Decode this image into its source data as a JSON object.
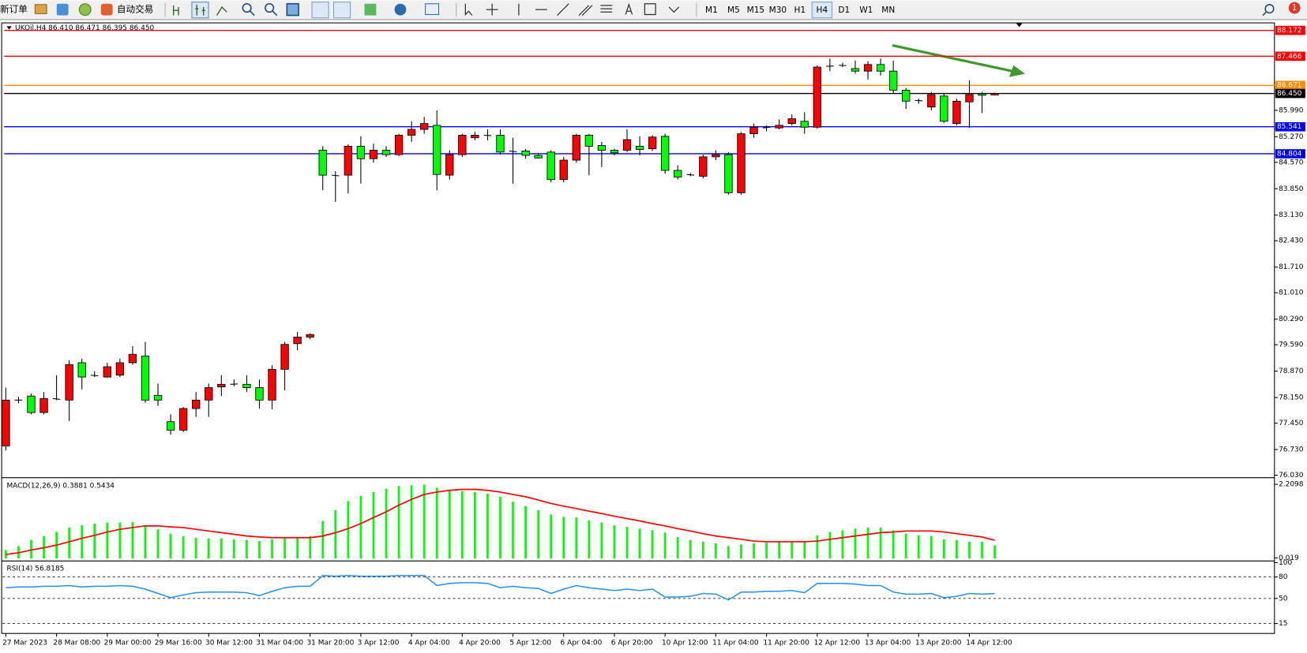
{
  "toolbar": {
    "new_order": "新订单",
    "auto_trading": "自动交易",
    "timeframes": [
      "M1",
      "M5",
      "M15",
      "M30",
      "H1",
      "H4",
      "D1",
      "W1",
      "MN"
    ],
    "active_timeframe_index": 5,
    "badge": "1"
  },
  "chart_data": [
    {
      "type": "candlestick",
      "title": "UKOil,H4  86.410 86.471 86.395 86.450",
      "up_color": "#ff0000",
      "down_color": "#00ff00",
      "categories": [
        "27 Mar 2023",
        null,
        null,
        null,
        "28 Mar 08:00",
        null,
        null,
        null,
        "29 Mar 00:00",
        null,
        null,
        null,
        "29 Mar 16:00",
        null,
        null,
        null,
        "30 Mar 12:00",
        null,
        null,
        null,
        "31 Mar 04:00",
        null,
        null,
        null,
        "31 Mar 20:00",
        null,
        null,
        null,
        "3 Apr 12:00",
        null,
        null,
        null,
        "4 Apr 04:00",
        null,
        null,
        null,
        "4 Apr 20:00",
        null,
        null,
        null,
        "5 Apr 12:00",
        null,
        null,
        null,
        "6 Apr 04:00",
        null,
        null,
        null,
        "6 Apr 20:00",
        null,
        null,
        null,
        "10 Apr 12:00",
        null,
        null,
        null,
        "11 Apr 04:00",
        null,
        null,
        null,
        "11 Apr 20:00",
        null,
        null,
        null,
        "12 Apr 12:00",
        null,
        null,
        null,
        "13 Apr 04:00",
        null,
        null,
        null,
        "13 Apr 20:00",
        null,
        null,
        null,
        "14 Apr 12:00",
        null,
        null
      ],
      "ohlc": [
        [
          76.83,
          78.42,
          76.71,
          78.08
        ],
        [
          78.08,
          78.17,
          77.99,
          78.08
        ],
        [
          78.19,
          78.26,
          77.69,
          77.74
        ],
        [
          77.74,
          78.3,
          77.69,
          78.12
        ],
        [
          78.12,
          78.76,
          78.08,
          78.1
        ],
        [
          78.08,
          79.17,
          77.51,
          79.05
        ],
        [
          79.1,
          79.21,
          78.37,
          78.71
        ],
        [
          78.76,
          78.87,
          78.71,
          78.74
        ],
        [
          78.71,
          79.1,
          78.69,
          78.99
        ],
        [
          78.76,
          79.21,
          78.71,
          79.1
        ],
        [
          79.1,
          79.55,
          79.05,
          79.33
        ],
        [
          79.28,
          79.67,
          78.01,
          78.08
        ],
        [
          78.21,
          78.53,
          77.92,
          78.08
        ],
        [
          77.49,
          77.69,
          77.14,
          77.26
        ],
        [
          77.26,
          77.89,
          77.21,
          77.85
        ],
        [
          77.85,
          78.3,
          77.62,
          78.08
        ],
        [
          78.08,
          78.53,
          77.62,
          78.42
        ],
        [
          78.44,
          78.76,
          78.19,
          78.51
        ],
        [
          78.51,
          78.64,
          78.46,
          78.52
        ],
        [
          78.51,
          78.76,
          78.3,
          78.42
        ],
        [
          78.42,
          78.64,
          77.85,
          78.08
        ],
        [
          78.08,
          79.03,
          77.83,
          78.92
        ],
        [
          78.92,
          79.67,
          78.35,
          79.6
        ],
        [
          79.62,
          79.94,
          79.44,
          79.8
        ],
        [
          79.8,
          79.9,
          79.74,
          79.87
        ],
        [
          84.9,
          85.01,
          83.81,
          84.22
        ],
        [
          84.22,
          84.33,
          83.49,
          84.2
        ],
        [
          84.22,
          85.06,
          83.72,
          85.01
        ],
        [
          85.01,
          85.28,
          83.99,
          84.67
        ],
        [
          84.67,
          85.08,
          84.56,
          84.9
        ],
        [
          84.9,
          85.01,
          84.72,
          84.78
        ],
        [
          84.78,
          85.35,
          84.74,
          85.31
        ],
        [
          85.31,
          85.69,
          85.13,
          85.47
        ],
        [
          85.47,
          85.81,
          85.35,
          85.63
        ],
        [
          85.58,
          85.99,
          83.81,
          84.24
        ],
        [
          84.22,
          84.9,
          84.1,
          84.78
        ],
        [
          84.78,
          85.35,
          84.72,
          85.31
        ],
        [
          85.24,
          85.4,
          85.17,
          85.31
        ],
        [
          85.31,
          85.47,
          85.17,
          85.3
        ],
        [
          85.31,
          85.47,
          84.78,
          84.85
        ],
        [
          84.88,
          85.24,
          83.99,
          84.86
        ],
        [
          84.88,
          84.94,
          84.67,
          84.76
        ],
        [
          84.76,
          84.83,
          84.67,
          84.69
        ],
        [
          84.85,
          84.9,
          84.03,
          84.1
        ],
        [
          84.1,
          84.72,
          84.03,
          84.63
        ],
        [
          84.63,
          85.35,
          84.56,
          85.31
        ],
        [
          85.31,
          85.35,
          84.22,
          85.01
        ],
        [
          85.03,
          85.13,
          84.44,
          84.9
        ],
        [
          84.9,
          84.94,
          84.76,
          84.83
        ],
        [
          84.9,
          85.47,
          84.85,
          85.19
        ],
        [
          85.01,
          85.28,
          84.76,
          84.92
        ],
        [
          84.94,
          85.31,
          84.88,
          85.26
        ],
        [
          85.28,
          85.35,
          84.26,
          84.35
        ],
        [
          84.35,
          84.49,
          84.1,
          84.17
        ],
        [
          84.24,
          84.28,
          84.19,
          84.22
        ],
        [
          84.19,
          84.78,
          84.13,
          84.72
        ],
        [
          84.72,
          84.9,
          84.63,
          84.78
        ],
        [
          84.78,
          84.85,
          83.69,
          83.74
        ],
        [
          83.74,
          85.4,
          83.69,
          85.35
        ],
        [
          85.35,
          85.63,
          85.24,
          85.53
        ],
        [
          85.51,
          85.58,
          85.42,
          85.53
        ],
        [
          85.51,
          85.74,
          85.47,
          85.58
        ],
        [
          85.63,
          85.88,
          85.58,
          85.76
        ],
        [
          85.69,
          85.94,
          85.35,
          85.53
        ],
        [
          85.53,
          87.22,
          85.49,
          87.17
        ],
        [
          87.19,
          87.4,
          87.06,
          87.2
        ],
        [
          87.22,
          87.29,
          87.17,
          87.21
        ],
        [
          87.13,
          87.35,
          86.99,
          87.06
        ],
        [
          87.06,
          87.33,
          86.83,
          87.24
        ],
        [
          87.24,
          87.4,
          86.94,
          87.06
        ],
        [
          87.06,
          87.35,
          86.44,
          86.54
        ],
        [
          86.54,
          86.6,
          86.03,
          86.24
        ],
        [
          86.26,
          86.31,
          86.17,
          86.25
        ],
        [
          86.08,
          86.49,
          85.99,
          86.42
        ],
        [
          86.38,
          86.44,
          85.65,
          85.69
        ],
        [
          85.63,
          86.31,
          85.58,
          86.24
        ],
        [
          86.22,
          86.81,
          85.51,
          86.42
        ],
        [
          86.44,
          86.49,
          85.92,
          86.4
        ],
        [
          86.41,
          86.471,
          86.395,
          86.45
        ]
      ],
      "ylim": [
        76.03,
        88.172
      ],
      "yticks": [
        {
          "value": 85.99,
          "label": "85.990"
        },
        {
          "value": 85.27,
          "label": "85.270"
        },
        {
          "value": 84.57,
          "label": "84.570"
        },
        {
          "value": 83.85,
          "label": "83.850"
        },
        {
          "value": 83.13,
          "label": "83.130"
        },
        {
          "value": 82.43,
          "label": "82.430"
        },
        {
          "value": 81.71,
          "label": "81.710"
        },
        {
          "value": 81.01,
          "label": "81.010"
        },
        {
          "value": 80.29,
          "label": "80.290"
        },
        {
          "value": 79.59,
          "label": "79.590"
        },
        {
          "value": 78.87,
          "label": "78.870"
        },
        {
          "value": 78.15,
          "label": "78.150"
        },
        {
          "value": 77.45,
          "label": "77.450"
        },
        {
          "value": 76.73,
          "label": "76.730"
        },
        {
          "value": 76.03,
          "label": "76.030"
        }
      ],
      "levels": [
        {
          "value": 88.172,
          "color": "#ff0000"
        },
        {
          "value": 87.466,
          "color": "#ff0000"
        },
        {
          "value": 86.671,
          "color": "#ff8c00"
        },
        {
          "value": 86.45,
          "label": "86.450",
          "color": "#000000"
        },
        {
          "value": 85.541,
          "color": "#0000ff"
        },
        {
          "value": 84.804,
          "color": "#0000ff"
        }
      ]
    },
    {
      "type": "macd",
      "title": "MACD(12,26,9) 0.3881 0.5434",
      "histogram_color": "#00ff00",
      "signal_color": "#ff0000",
      "histogram": [
        0.25,
        0.37,
        0.55,
        0.67,
        0.79,
        0.92,
        0.99,
        1.04,
        1.07,
        1.07,
        1.09,
        0.99,
        0.87,
        0.74,
        0.67,
        0.62,
        0.6,
        0.6,
        0.57,
        0.55,
        0.52,
        0.57,
        0.62,
        0.64,
        0.67,
        1.12,
        1.44,
        1.71,
        1.86,
        1.98,
        2.08,
        2.16,
        2.18,
        2.2,
        2.11,
        2.03,
        2.01,
        1.98,
        1.93,
        1.84,
        1.69,
        1.56,
        1.44,
        1.31,
        1.24,
        1.22,
        1.14,
        1.07,
        0.99,
        0.94,
        0.89,
        0.84,
        0.77,
        0.64,
        0.55,
        0.5,
        0.45,
        0.37,
        0.42,
        0.45,
        0.47,
        0.5,
        0.5,
        0.5,
        0.69,
        0.79,
        0.84,
        0.89,
        0.92,
        0.92,
        0.84,
        0.74,
        0.69,
        0.67,
        0.57,
        0.55,
        0.5,
        0.5,
        0.3881
      ],
      "signal": [
        0.12,
        0.17,
        0.25,
        0.32,
        0.4,
        0.5,
        0.6,
        0.69,
        0.79,
        0.87,
        0.92,
        0.97,
        0.97,
        0.94,
        0.92,
        0.87,
        0.82,
        0.77,
        0.72,
        0.67,
        0.64,
        0.62,
        0.62,
        0.62,
        0.62,
        0.67,
        0.77,
        0.89,
        1.04,
        1.22,
        1.39,
        1.59,
        1.76,
        1.91,
        1.98,
        2.03,
        2.06,
        2.06,
        2.03,
        1.98,
        1.91,
        1.84,
        1.74,
        1.64,
        1.56,
        1.49,
        1.41,
        1.34,
        1.26,
        1.19,
        1.12,
        1.04,
        0.97,
        0.89,
        0.82,
        0.74,
        0.67,
        0.62,
        0.57,
        0.52,
        0.5,
        0.5,
        0.5,
        0.5,
        0.52,
        0.57,
        0.62,
        0.67,
        0.72,
        0.77,
        0.79,
        0.82,
        0.82,
        0.82,
        0.79,
        0.74,
        0.69,
        0.64,
        0.5434
      ],
      "ylim": [
        0,
        2.2098
      ],
      "yticks": [
        2.2098,
        0.019
      ]
    },
    {
      "type": "line",
      "title": "RSI(14) 56.8185",
      "color": "#1e90ff",
      "values": [
        65,
        66,
        66,
        67,
        67,
        68,
        66,
        67,
        67,
        68,
        67,
        63,
        57,
        51,
        55,
        58,
        59,
        59,
        59,
        58,
        54,
        60,
        65,
        67,
        67,
        82,
        81,
        82,
        81,
        81,
        81,
        82,
        82,
        82,
        68,
        71,
        72,
        72,
        71,
        65,
        67,
        65,
        64,
        57,
        63,
        68,
        65,
        63,
        61,
        63,
        61,
        63,
        52,
        52,
        53,
        57,
        56,
        48,
        59,
        59,
        60,
        60,
        61,
        58,
        71,
        71,
        71,
        70,
        68,
        68,
        59,
        56,
        56,
        57,
        51,
        53,
        57,
        56,
        56.8185
      ],
      "ylim": [
        0,
        100
      ],
      "yticks": [
        100,
        80,
        50,
        15
      ],
      "dashed_levels": [
        80,
        50,
        15
      ]
    }
  ]
}
